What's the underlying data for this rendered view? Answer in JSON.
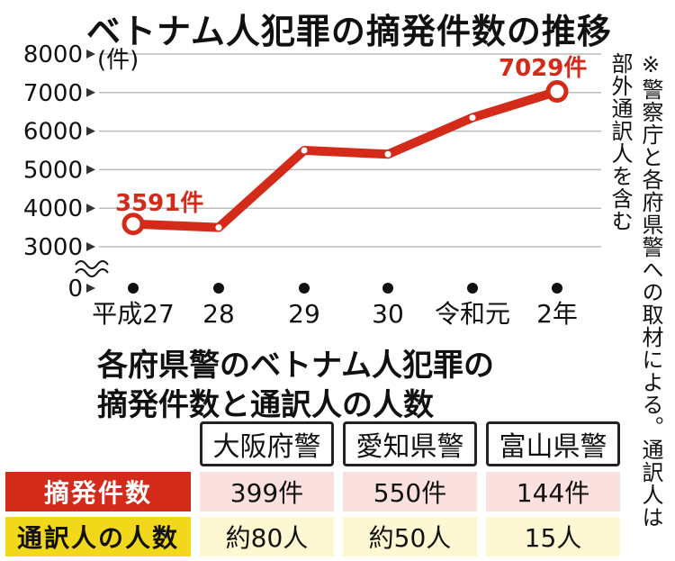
{
  "chart_data": {
    "type": "line",
    "title": "ベトナム人犯罪の摘発件数の推移",
    "ylabel": "(件)",
    "xlabel": "",
    "categories": [
      "平成27",
      "28",
      "29",
      "30",
      "令和元",
      "2年"
    ],
    "series": [
      {
        "values": [
          3591,
          3500,
          5500,
          5400,
          6350,
          7029
        ]
      }
    ],
    "yticks": [
      0,
      3000,
      4000,
      5000,
      6000,
      7000,
      8000
    ],
    "ylim": [
      3000,
      8000
    ],
    "axis_break": true,
    "data_labels": [
      {
        "index": 0,
        "text": "3591件"
      },
      {
        "index": 5,
        "text": "7029件"
      }
    ],
    "grid": true,
    "line_color": "#d42a1a"
  },
  "note": {
    "line1": "※警察庁と各府県警への取材による。通訳人は",
    "line2": "部外通訳人を含む"
  },
  "table": {
    "title_line1": "各府県警のベトナム人犯罪の",
    "title_line2": "摘発件数と通訳人の人数",
    "columns": [
      "大阪府警",
      "愛知県警",
      "富山県警"
    ],
    "rows": [
      {
        "label": "摘発件数",
        "values": [
          "399件",
          "550件",
          "144件"
        ]
      },
      {
        "label": "通訳人の人数",
        "values": [
          "約80人",
          "約50人",
          "15人"
        ]
      }
    ]
  },
  "colors": {
    "accent_red": "#d42a1a",
    "accent_yellow": "#f2d81a",
    "pink_cell": "#fbe0e0",
    "cream_cell": "#fdf8d2"
  }
}
